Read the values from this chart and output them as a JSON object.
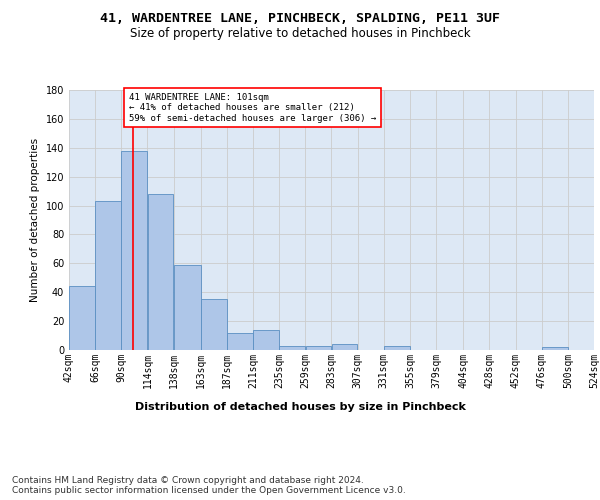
{
  "title1": "41, WARDENTREE LANE, PINCHBECK, SPALDING, PE11 3UF",
  "title2": "Size of property relative to detached houses in Pinchbeck",
  "xlabel": "Distribution of detached houses by size in Pinchbeck",
  "ylabel": "Number of detached properties",
  "bin_edges": [
    42,
    66,
    90,
    114,
    138,
    163,
    187,
    211,
    235,
    259,
    283,
    307,
    331,
    355,
    379,
    404,
    428,
    452,
    476,
    500,
    524
  ],
  "bar_heights": [
    44,
    103,
    138,
    108,
    59,
    35,
    12,
    14,
    3,
    3,
    4,
    0,
    3,
    0,
    0,
    0,
    0,
    0,
    2,
    0
  ],
  "bar_color": "#aec6e8",
  "bar_edge_color": "#5a8fc2",
  "grid_color": "#cccccc",
  "bg_color": "#dde8f5",
  "vline_x": 101,
  "vline_color": "red",
  "annotation_text": "41 WARDENTREE LANE: 101sqm\n← 41% of detached houses are smaller (212)\n59% of semi-detached houses are larger (306) →",
  "annotation_box_color": "white",
  "annotation_box_edge": "red",
  "ylim": [
    0,
    180
  ],
  "yticks": [
    0,
    20,
    40,
    60,
    80,
    100,
    120,
    140,
    160,
    180
  ],
  "tick_labels": [
    "42sqm",
    "66sqm",
    "90sqm",
    "114sqm",
    "138sqm",
    "163sqm",
    "187sqm",
    "211sqm",
    "235sqm",
    "259sqm",
    "283sqm",
    "307sqm",
    "331sqm",
    "355sqm",
    "379sqm",
    "404sqm",
    "428sqm",
    "452sqm",
    "476sqm",
    "500sqm",
    "524sqm"
  ],
  "footer_text": "Contains HM Land Registry data © Crown copyright and database right 2024.\nContains public sector information licensed under the Open Government Licence v3.0.",
  "title1_fontsize": 9.5,
  "title2_fontsize": 8.5,
  "xlabel_fontsize": 8,
  "ylabel_fontsize": 7.5,
  "tick_fontsize": 7,
  "footer_fontsize": 6.5,
  "annotation_fontsize": 6.5
}
